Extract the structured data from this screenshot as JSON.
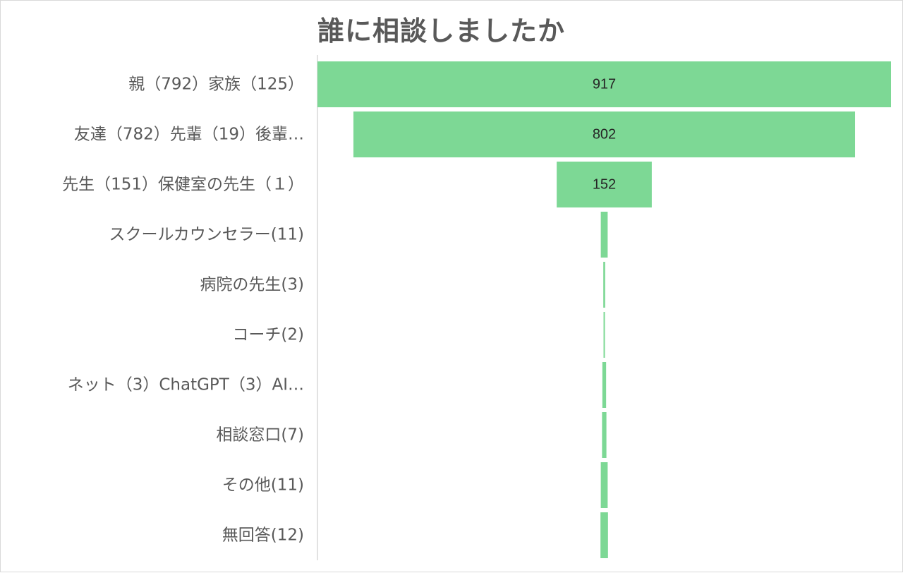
{
  "colors": {
    "bar": "#7dd895",
    "axis": "#d9d9d9",
    "text": "#595959",
    "value_text": "#262626"
  },
  "chart_data": {
    "type": "bar",
    "subtype": "funnel",
    "title": "誰に相談しましたか",
    "categories": [
      "親（792）家族（125）",
      "友達（782）先輩（19）後輩…",
      "先生（151）保健室の先生（１）",
      "スクールカウンセラー(11)",
      "病院の先生(3)",
      "コーチ(2)",
      "ネット（3）ChatGPT（3）AI…",
      "相談窓口(7)",
      "その他(11)",
      "無回答(12)"
    ],
    "values": [
      917,
      802,
      152,
      11,
      3,
      2,
      6,
      7,
      11,
      12
    ],
    "data_labels": [
      "917",
      "802",
      "152",
      "",
      "",
      "",
      "",
      "",
      "",
      ""
    ],
    "xlabel": "",
    "ylabel": "",
    "grid": false,
    "legend": "none"
  }
}
